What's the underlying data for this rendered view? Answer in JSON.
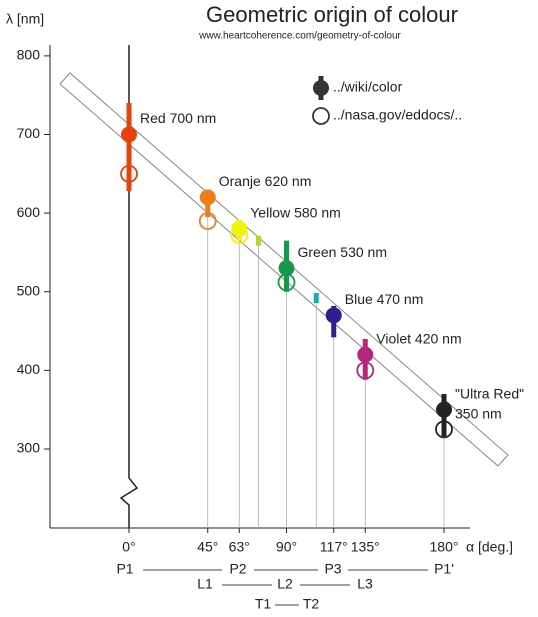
{
  "chart_data": {
    "type": "scatter",
    "title": "Geometric origin of colour",
    "subtitle": "www.heartcoherence.com/geometry-of-colour",
    "x_label": "α [deg.]",
    "y_label": "λ [nm]",
    "xlim": [
      -45,
      195
    ],
    "ylim": [
      200,
      810
    ],
    "xticks": [
      {
        "value": 0,
        "label": "0°"
      },
      {
        "value": 45,
        "label": "45°"
      },
      {
        "value": 63,
        "label": "63°"
      },
      {
        "value": 90,
        "label": "90°"
      },
      {
        "value": 117,
        "label": "117°"
      },
      {
        "value": 135,
        "label": "135°"
      },
      {
        "value": 180,
        "label": "180°"
      }
    ],
    "yticks": [
      300,
      400,
      500,
      600,
      700,
      800
    ],
    "series": [
      {
        "name": "../wiki/color",
        "color": "#333333",
        "filled": true,
        "x": [
          0,
          45,
          63,
          90,
          117,
          135,
          180
        ],
        "values": [
          700,
          620,
          580,
          530,
          470,
          420,
          350
        ],
        "low": [
          628,
          595,
          565,
          500,
          442,
          388,
          316
        ],
        "high": [
          740,
          630,
          592,
          565,
          482,
          440,
          370
        ],
        "colors": [
          "#e8420c",
          "#ee7e1a",
          "#f2f20a",
          "#17984a",
          "#2e1f8e",
          "#b3267c",
          "#222222"
        ],
        "labels": [
          [
            "Red 700 nm"
          ],
          [
            "Oranje 620 nm"
          ],
          [
            "Yellow 580 nm"
          ],
          [
            "Green 530 nm"
          ],
          [
            "Blue 470 nm"
          ],
          [
            "Violet 420 nm"
          ],
          [
            "\"Ultra Red\"",
            "350 nm"
          ]
        ]
      },
      {
        "name": "../nasa.gov/eddocs/..",
        "color": "#333333",
        "filled": false,
        "x": [
          0,
          45,
          63,
          90,
          135,
          180
        ],
        "values": [
          650,
          590,
          572,
          512,
          400,
          325
        ],
        "colors": [
          "#e8420c",
          "#ee7e1a",
          "#f2f20a",
          "#17984a",
          "#b3267c",
          "#222222"
        ]
      }
    ],
    "small_marks": {
      "x": [
        74,
        107
      ],
      "values": [
        565,
        492
      ],
      "colors": [
        "#b6d636",
        "#1aa9b8"
      ]
    },
    "bottom_rows": [
      [
        "P1",
        "P2",
        "P3",
        "P1'"
      ],
      [
        "L1",
        "L2",
        "L3"
      ],
      [
        "T1",
        "T2"
      ]
    ]
  }
}
